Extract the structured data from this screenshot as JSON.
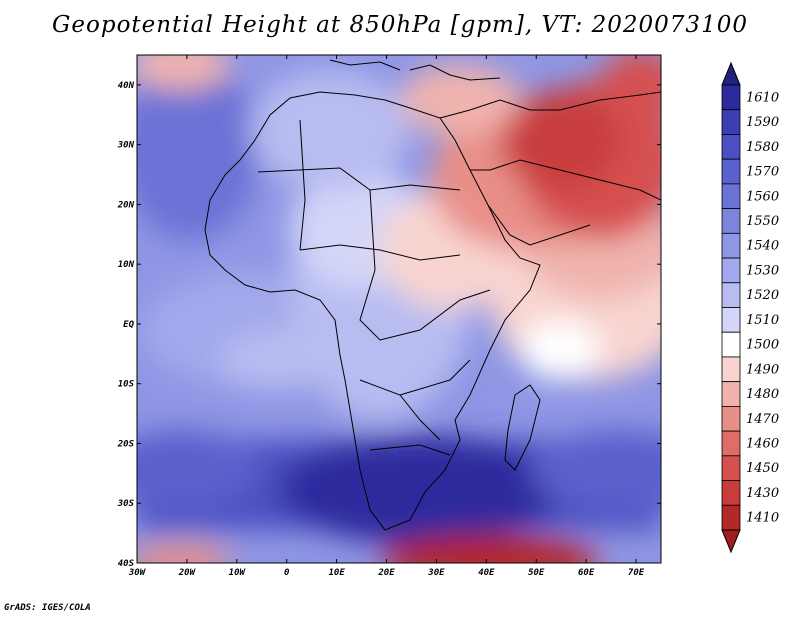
{
  "title": "Geopotential Height at 850hPa [gpm], VT: 2020073100",
  "credit": "GrADS: IGES/COLA",
  "map": {
    "lon_range": [
      -30,
      75
    ],
    "lat_range": [
      -40,
      45
    ],
    "x_ticks": [
      "30W",
      "20W",
      "10W",
      "0",
      "10E",
      "20E",
      "30E",
      "40E",
      "50E",
      "60E",
      "70E"
    ],
    "y_ticks": [
      "40N",
      "30N",
      "20N",
      "10N",
      "EQ",
      "10S",
      "20S",
      "30S",
      "40S"
    ]
  },
  "colorbar": {
    "labels": [
      "1610",
      "1590",
      "1580",
      "1570",
      "1560",
      "1550",
      "1540",
      "1530",
      "1520",
      "1510",
      "1500",
      "1490",
      "1480",
      "1470",
      "1460",
      "1450",
      "1430",
      "1410"
    ],
    "colors": [
      "#2d2a9e",
      "#3c3fb2",
      "#4a4fc1",
      "#5a60cc",
      "#6a72d6",
      "#7d84dd",
      "#8f96e4",
      "#a2a8eb",
      "#b8bcf1",
      "#d3d6f8",
      "#ffffff",
      "#f8d4d0",
      "#f0b3ad",
      "#e88f88",
      "#df6c66",
      "#d65050",
      "#c83c3c",
      "#b32828"
    ]
  }
}
